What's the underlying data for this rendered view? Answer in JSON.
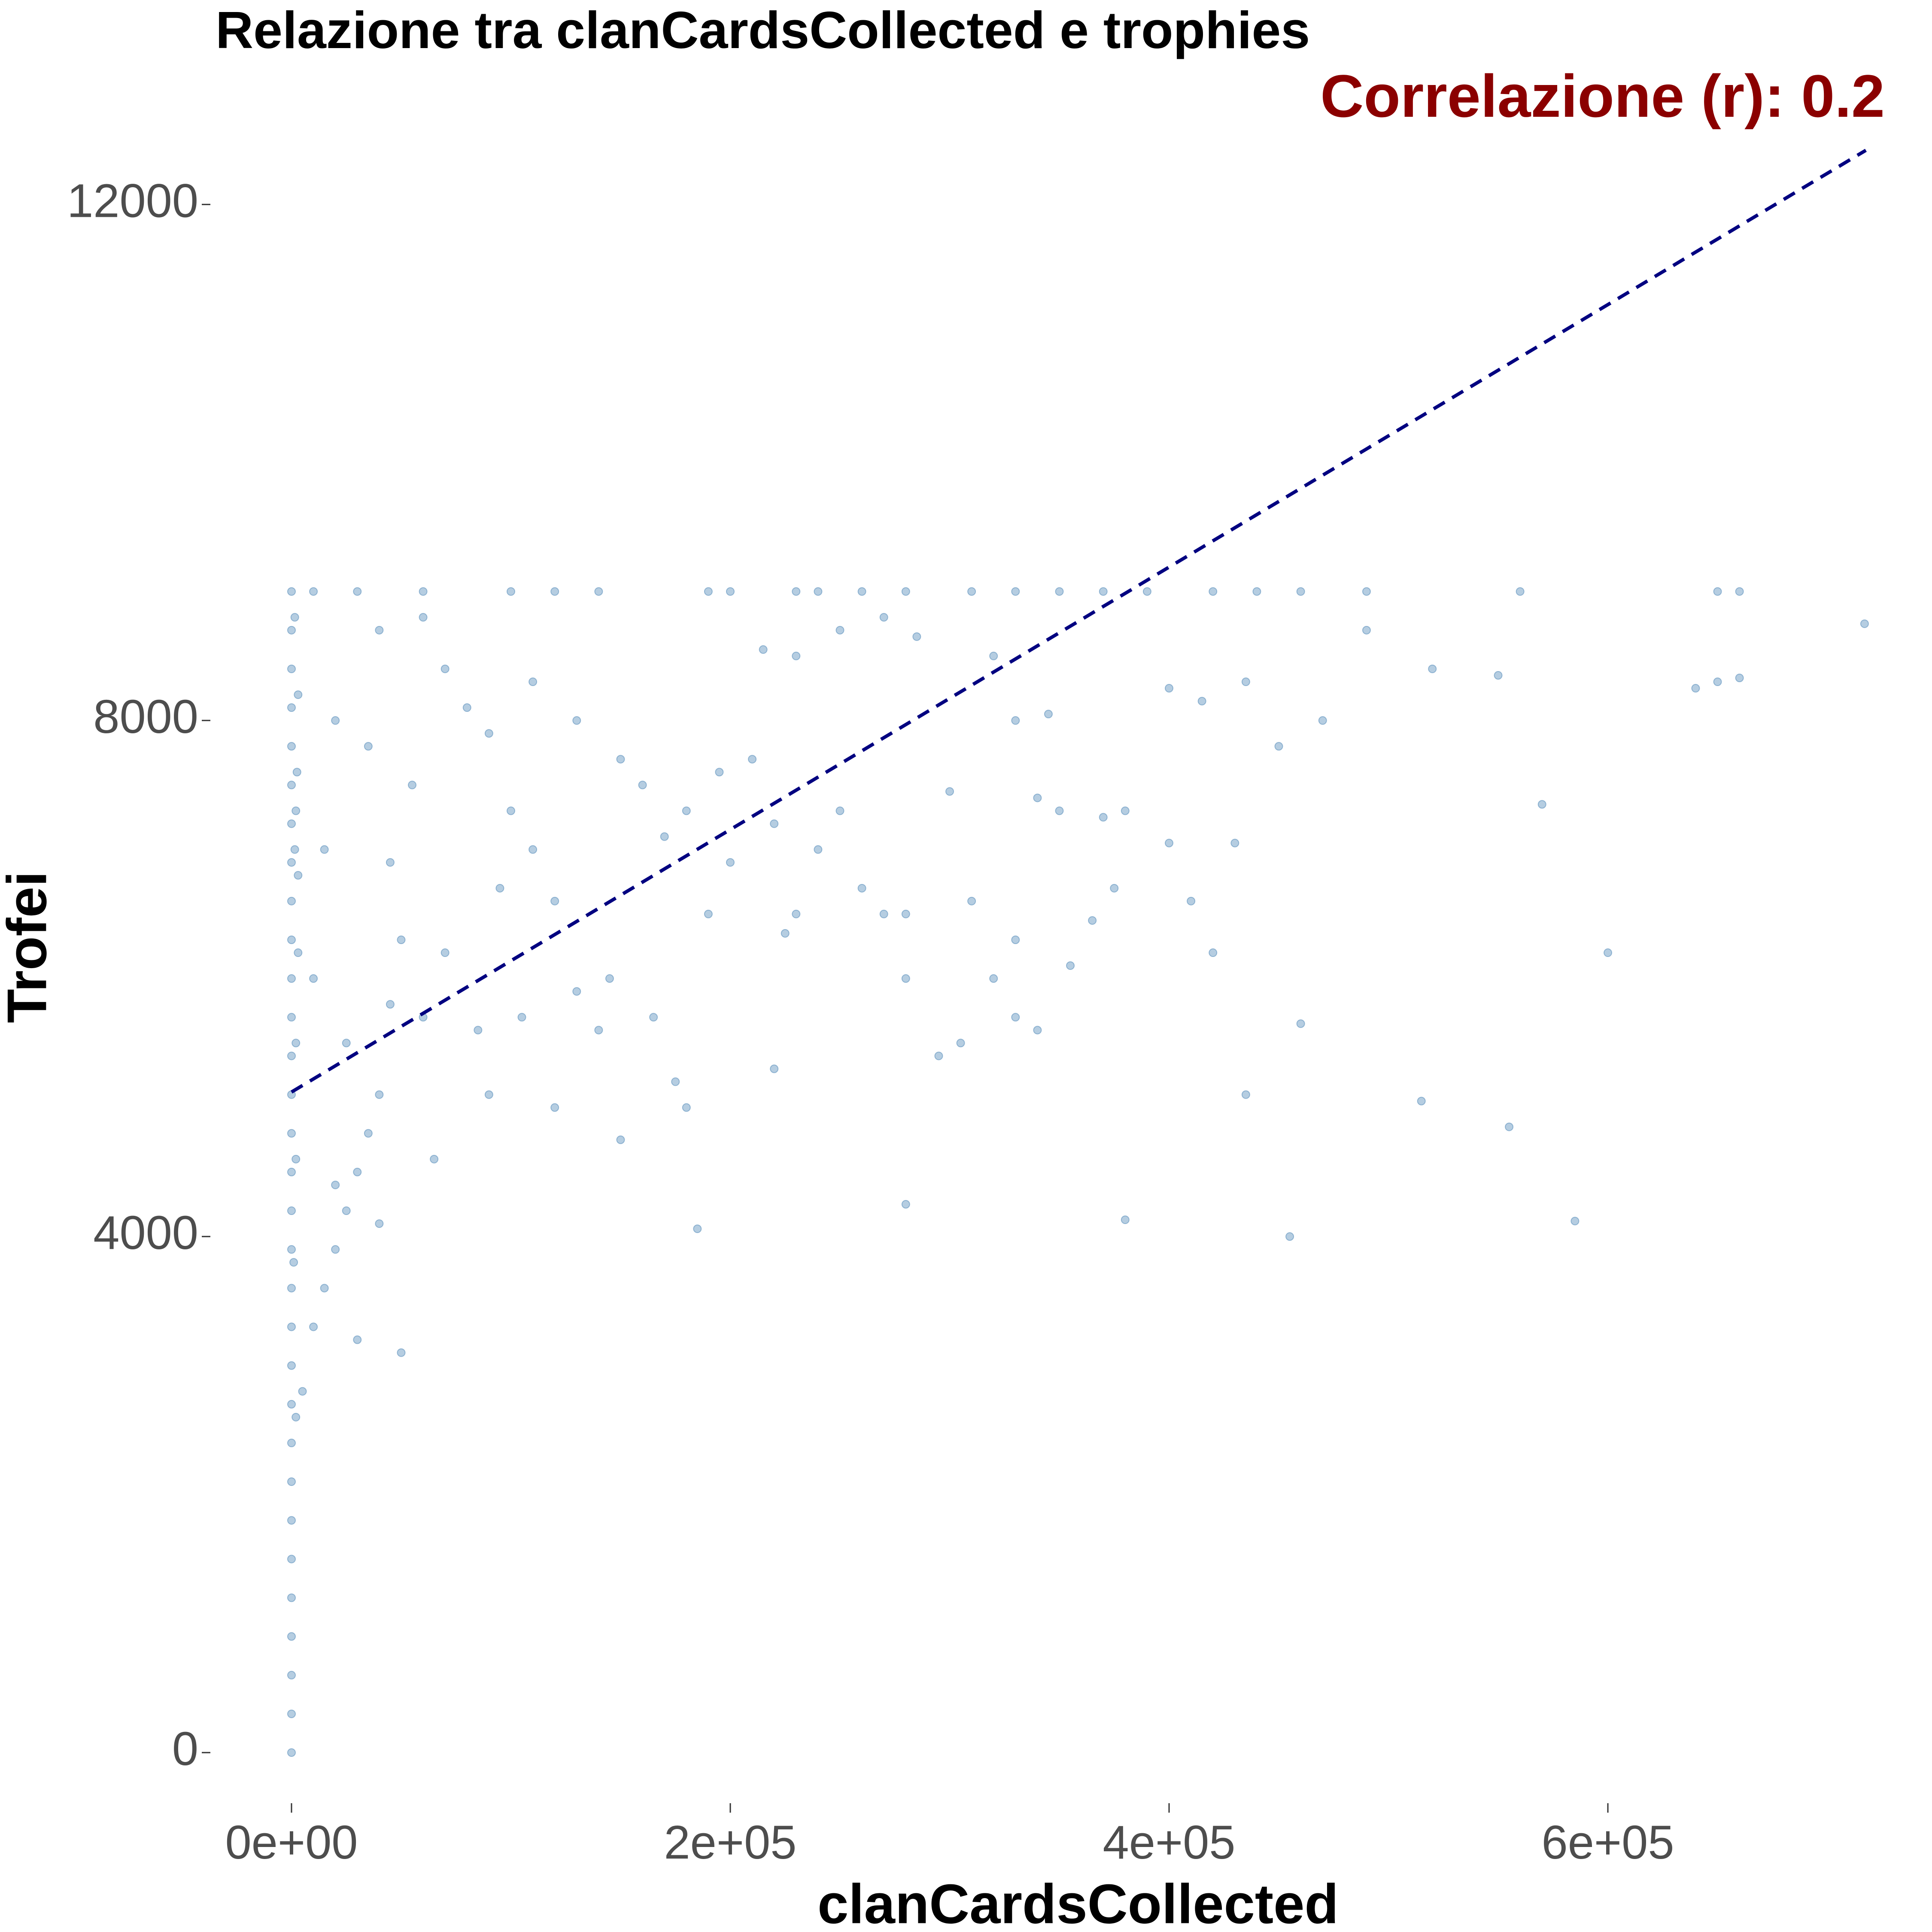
{
  "chart_data": {
    "type": "scatter",
    "title": "Relazione tra clanCardsCollected e trophies",
    "annotation": "Correlazione (r): 0.2",
    "x_label": "clanCardsCollected",
    "y_label": "Trofei",
    "xlim": [
      -36000,
      745000
    ],
    "ylim": [
      -632,
      13282
    ],
    "xticks": [
      {
        "value": 0,
        "label": "0e+00"
      },
      {
        "value": 200000,
        "label": "2e+05"
      },
      {
        "value": 400000,
        "label": "4e+05"
      },
      {
        "value": 600000,
        "label": "6e+05"
      }
    ],
    "yticks": [
      0,
      4000,
      8000,
      12000
    ],
    "grid": false,
    "point_color": "#4682b4",
    "trend_line": {
      "color": "#000080",
      "dashed": true,
      "x": [
        0,
        717600
      ],
      "y": [
        5120,
        12420
      ]
    },
    "x": [
      0,
      0,
      0,
      0,
      0,
      0,
      0,
      0,
      0,
      0,
      0,
      0,
      0,
      0,
      0,
      0,
      0,
      0,
      0,
      0,
      0,
      0,
      0,
      0,
      0,
      0,
      0,
      0,
      0,
      0,
      0,
      2000,
      3000,
      1500,
      2500,
      3000,
      2000,
      1000,
      3000,
      2000,
      1500,
      10000,
      30000,
      60000,
      100000,
      120000,
      140000,
      190000,
      200000,
      230000,
      240000,
      260000,
      280000,
      310000,
      330000,
      350000,
      370000,
      390000,
      420000,
      440000,
      460000,
      490000,
      560000,
      650000,
      660000,
      717000,
      490000,
      520000,
      550000,
      640000,
      650000,
      660000,
      435000,
      470000,
      450000,
      570000,
      400000,
      415000,
      600000,
      410000,
      430000,
      400000,
      380000,
      370000,
      375000,
      365000,
      355000,
      420000,
      460000,
      435000,
      515000,
      555000,
      585000,
      380000,
      455000,
      280000,
      185000,
      220000,
      295000,
      305000,
      340000,
      330000,
      320000,
      330000,
      310000,
      300000,
      340000,
      350000,
      330000,
      345000,
      320000,
      285000,
      270000,
      250000,
      230000,
      215000,
      210000,
      200000,
      195000,
      220000,
      240000,
      250000,
      260000,
      270000,
      280000,
      280000,
      225000,
      230000,
      190000,
      180000,
      170000,
      160000,
      150000,
      145000,
      140000,
      130000,
      120000,
      110000,
      100000,
      95000,
      90000,
      80000,
      70000,
      60000,
      55000,
      50000,
      45000,
      40000,
      35000,
      30000,
      25000,
      20000,
      15000,
      10000,
      5000,
      2000,
      30000,
      50000,
      60000,
      90000,
      105000,
      120000,
      150000,
      175000,
      165000,
      180000,
      130000,
      110000,
      40000,
      20000,
      15000,
      10000,
      25000,
      35000,
      45000,
      70000,
      85000,
      65000,
      40000,
      20000
    ],
    "y": [
      0,
      300,
      600,
      900,
      1200,
      1500,
      1800,
      2100,
      2400,
      2700,
      3000,
      3300,
      3600,
      3900,
      4200,
      4500,
      4800,
      5100,
      5400,
      5700,
      6000,
      6300,
      6600,
      6900,
      7200,
      7500,
      7800,
      8100,
      8400,
      8700,
      9000,
      5500,
      6200,
      7000,
      7600,
      8200,
      4600,
      3800,
      6800,
      7300,
      8800,
      9000,
      9000,
      9000,
      9000,
      9000,
      9000,
      9000,
      9000,
      9000,
      9000,
      9000,
      9000,
      9000,
      9000,
      9000,
      9000,
      9000,
      9000,
      9000,
      9000,
      9000,
      9000,
      9000,
      9000,
      8750,
      8700,
      8400,
      8350,
      8250,
      8300,
      8330,
      8300,
      8000,
      7800,
      7350,
      8250,
      8150,
      6200,
      6600,
      7050,
      7050,
      7300,
      7250,
      6700,
      6450,
      6100,
      6200,
      5650,
      5100,
      5050,
      4850,
      4120,
      4130,
      4000,
      4250,
      4060,
      5300,
      5400,
      5500,
      5600,
      5700,
      6000,
      6300,
      6600,
      7450,
      7400,
      7300,
      8000,
      8050,
      8500,
      8650,
      8800,
      8700,
      8500,
      8550,
      7700,
      6900,
      7600,
      7200,
      7000,
      7300,
      6700,
      6500,
      6000,
      6500,
      6350,
      6500,
      6500,
      7300,
      7100,
      7500,
      7700,
      6000,
      5600,
      5900,
      6600,
      7000,
      7300,
      6700,
      7900,
      8100,
      8400,
      8800,
      7500,
      6300,
      5800,
      5100,
      4800,
      4500,
      4200,
      3900,
      3600,
      3300,
      2800,
      2600,
      3200,
      3100,
      5700,
      5100,
      5700,
      5000,
      4750,
      5200,
      5700,
      5000,
      8000,
      8300,
      8700,
      8000,
      7000,
      6000,
      5500,
      7800,
      6900,
      6200,
      5600,
      4600,
      4100,
      4400
    ]
  }
}
